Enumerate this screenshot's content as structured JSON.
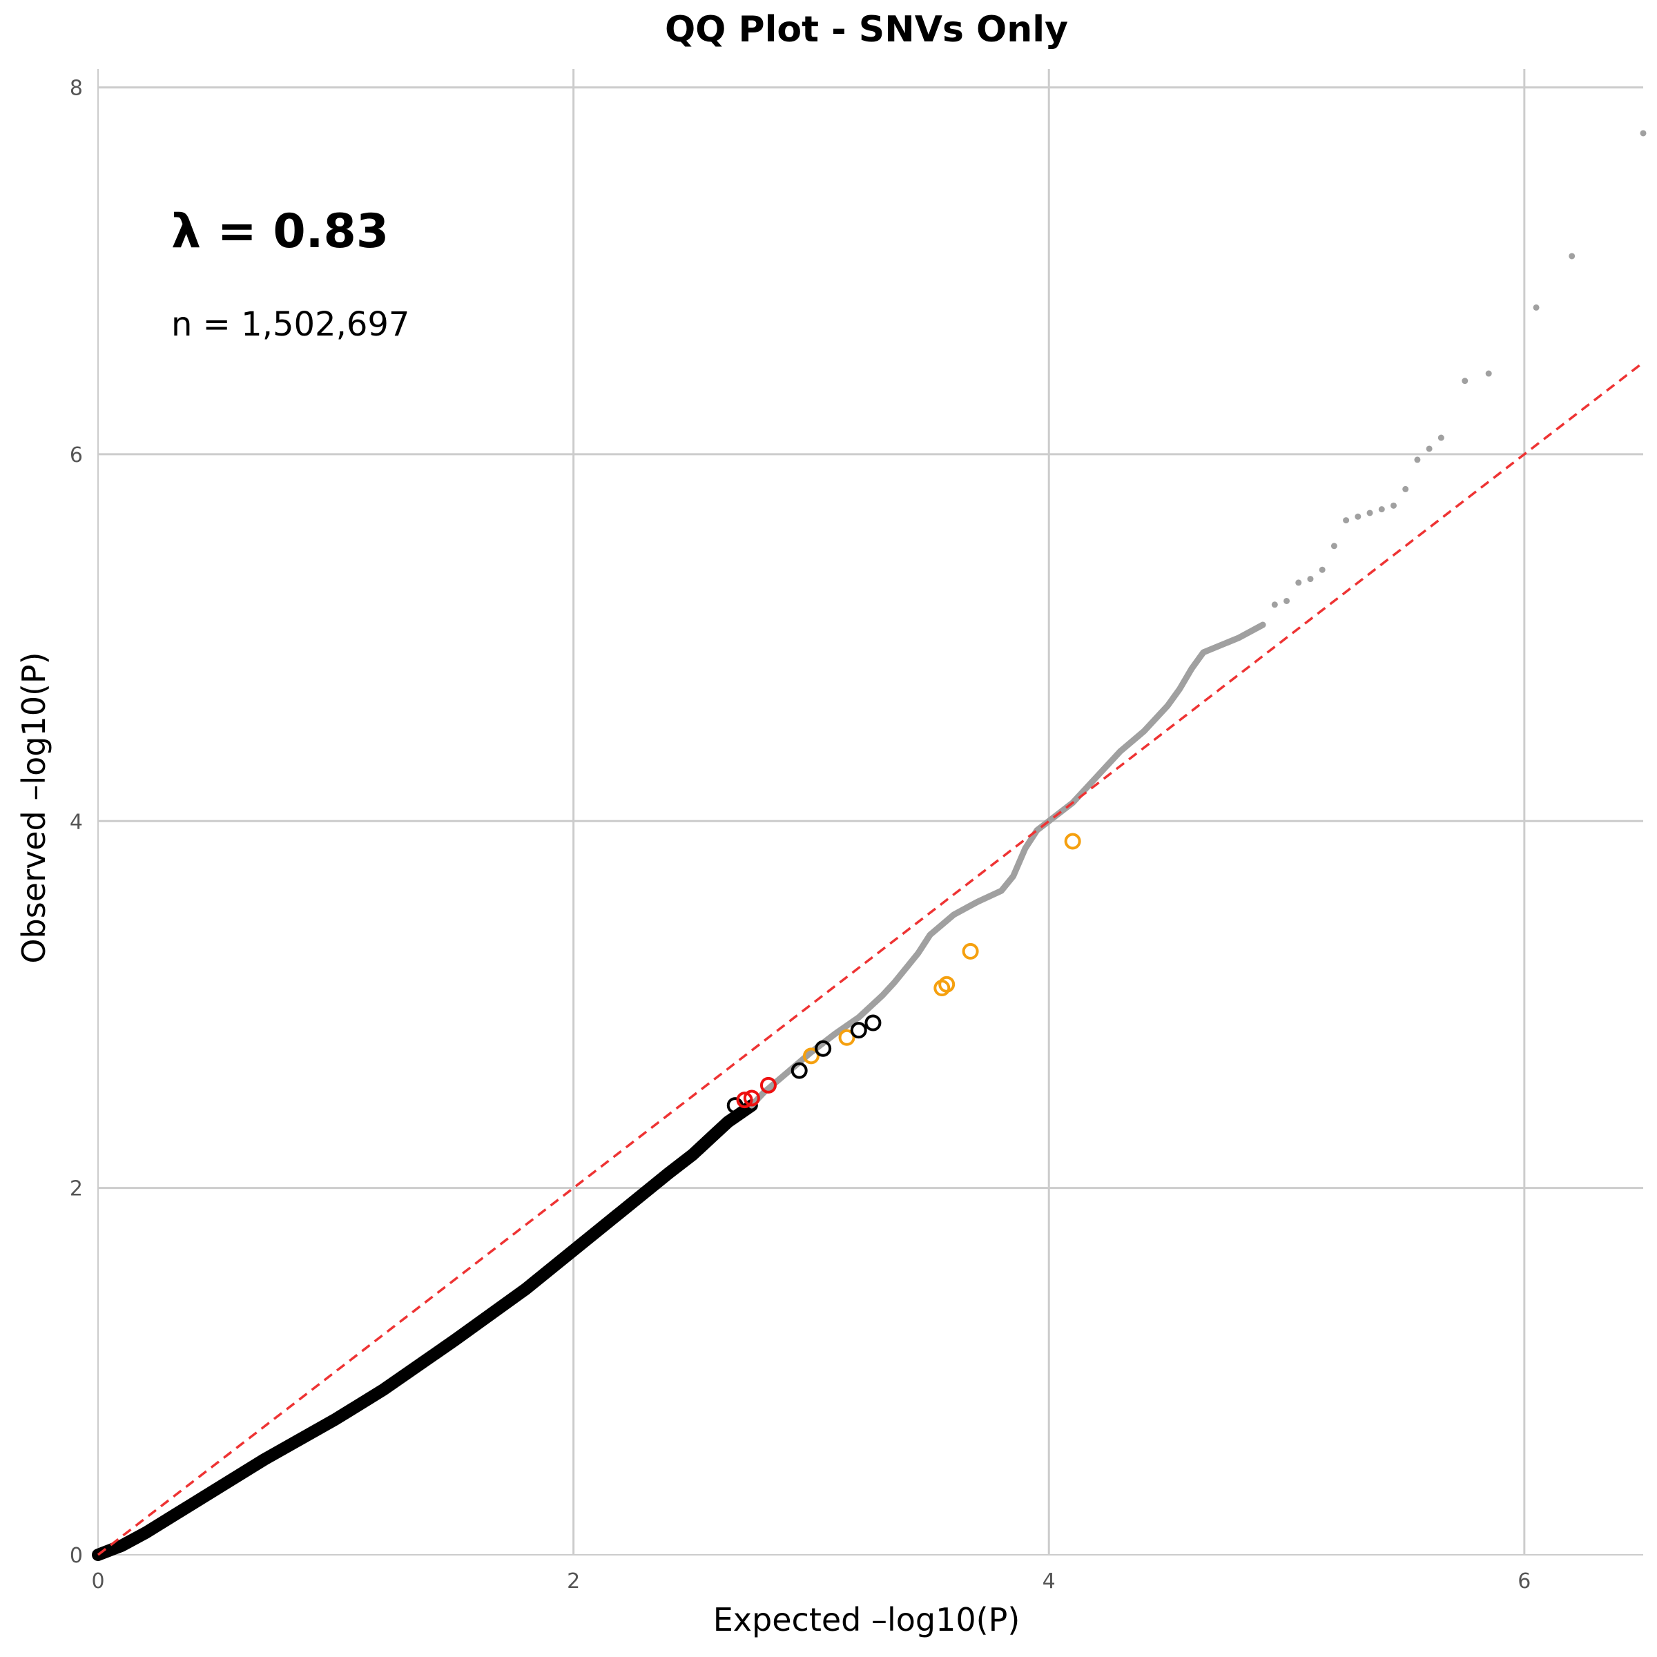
{
  "chart_data": {
    "type": "scatter",
    "title": "QQ Plot - SNVs Only",
    "xlabel": "Expected –log10(P)",
    "ylabel": "Observed –log10(P)",
    "xlim": [
      0,
      6.5
    ],
    "ylim": [
      0,
      8.1
    ],
    "x_ticks": [
      "0",
      "2",
      "4",
      "6"
    ],
    "y_ticks": [
      "0",
      "2",
      "4",
      "6",
      "8"
    ],
    "grid": true,
    "annotations": {
      "lambda": "λ = 0.83",
      "n": "n = 1,502,697"
    },
    "colors": {
      "bulk": "#000000",
      "tail": "#a0a0a0",
      "reference_line": "#ee3333",
      "highlight_orange": "#f5a00f",
      "highlight_red": "#ee1111",
      "highlight_black": "#000000",
      "grid": "#cccccc"
    },
    "reference_line": {
      "x": [
        0,
        6.5
      ],
      "y": [
        0,
        6.5
      ]
    },
    "bulk_curve": [
      [
        0,
        0
      ],
      [
        0.1,
        0.05
      ],
      [
        0.2,
        0.12
      ],
      [
        0.4,
        0.28
      ],
      [
        0.7,
        0.52
      ],
      [
        1.0,
        0.74
      ],
      [
        1.2,
        0.9
      ],
      [
        1.5,
        1.17
      ],
      [
        1.8,
        1.45
      ],
      [
        2.0,
        1.66
      ],
      [
        2.2,
        1.87
      ],
      [
        2.4,
        2.08
      ],
      [
        2.5,
        2.18
      ],
      [
        2.6,
        2.3
      ],
      [
        2.65,
        2.36
      ],
      [
        2.75,
        2.45
      ]
    ],
    "tail_curve": [
      [
        2.75,
        2.45
      ],
      [
        2.8,
        2.52
      ],
      [
        2.9,
        2.63
      ],
      [
        3.0,
        2.74
      ],
      [
        3.1,
        2.84
      ],
      [
        3.2,
        2.93
      ],
      [
        3.3,
        3.05
      ],
      [
        3.35,
        3.12
      ],
      [
        3.45,
        3.28
      ],
      [
        3.5,
        3.38
      ],
      [
        3.6,
        3.49
      ],
      [
        3.7,
        3.56
      ],
      [
        3.8,
        3.62
      ],
      [
        3.85,
        3.7
      ],
      [
        3.9,
        3.85
      ],
      [
        3.95,
        3.95
      ],
      [
        4.0,
        4.0
      ],
      [
        4.1,
        4.1
      ],
      [
        4.2,
        4.24
      ],
      [
        4.3,
        4.38
      ],
      [
        4.4,
        4.49
      ],
      [
        4.5,
        4.63
      ],
      [
        4.55,
        4.72
      ],
      [
        4.6,
        4.83
      ],
      [
        4.65,
        4.92
      ],
      [
        4.8,
        5.0
      ],
      [
        4.9,
        5.07
      ]
    ],
    "tail_points": [
      [
        4.95,
        5.18
      ],
      [
        5.0,
        5.2
      ],
      [
        5.05,
        5.3
      ],
      [
        5.1,
        5.32
      ],
      [
        5.15,
        5.37
      ],
      [
        5.2,
        5.5
      ],
      [
        5.25,
        5.64
      ],
      [
        5.3,
        5.66
      ],
      [
        5.35,
        5.68
      ],
      [
        5.4,
        5.7
      ],
      [
        5.45,
        5.72
      ],
      [
        5.5,
        5.81
      ],
      [
        5.55,
        5.97
      ],
      [
        5.6,
        6.03
      ],
      [
        5.65,
        6.09
      ],
      [
        5.75,
        6.4
      ],
      [
        5.85,
        6.44
      ],
      [
        6.05,
        6.8
      ],
      [
        6.2,
        7.08
      ],
      [
        6.5,
        7.75
      ]
    ],
    "highlight_points": [
      {
        "x": 2.68,
        "y": 2.45,
        "color": "black"
      },
      {
        "x": 2.72,
        "y": 2.48,
        "color": "red"
      },
      {
        "x": 2.75,
        "y": 2.49,
        "color": "red"
      },
      {
        "x": 2.82,
        "y": 2.56,
        "color": "red"
      },
      {
        "x": 2.95,
        "y": 2.64,
        "color": "black"
      },
      {
        "x": 3.0,
        "y": 2.72,
        "color": "orange"
      },
      {
        "x": 3.05,
        "y": 2.76,
        "color": "black"
      },
      {
        "x": 3.15,
        "y": 2.82,
        "color": "orange"
      },
      {
        "x": 3.2,
        "y": 2.86,
        "color": "black"
      },
      {
        "x": 3.26,
        "y": 2.9,
        "color": "black"
      },
      {
        "x": 3.55,
        "y": 3.09,
        "color": "orange"
      },
      {
        "x": 3.57,
        "y": 3.11,
        "color": "orange"
      },
      {
        "x": 3.67,
        "y": 3.29,
        "color": "orange"
      },
      {
        "x": 4.1,
        "y": 3.89,
        "color": "orange"
      }
    ]
  }
}
